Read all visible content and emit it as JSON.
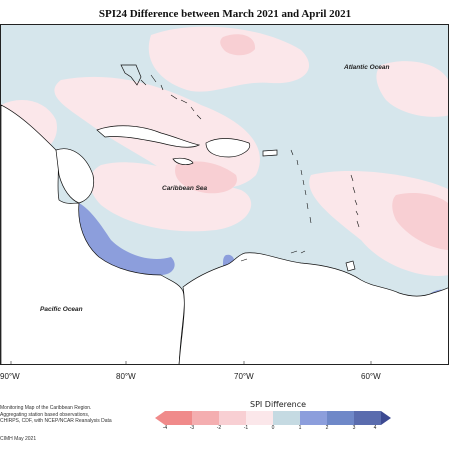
{
  "title": "SPI24 Difference between March 2021 and April 2021",
  "place_labels": {
    "atlantic": "Atlantic Ocean",
    "caribbean": "Caribbean Sea",
    "pacific": "Pacific Ocean"
  },
  "longitude_ticks": [
    "90°W",
    "80°W",
    "70°W",
    "60°W"
  ],
  "credit_lines": [
    "Monitoring Map of the Caribbean Region.",
    "Aggregating station based observations,",
    "CHIRPS, CDF, with NCEP/NCAR Reanalysis Data"
  ],
  "footer_credit": "CIMH May 2021",
  "legend": {
    "title": "SPI Difference",
    "ticks": [
      "-4",
      "-3",
      "-2",
      "-1",
      "0",
      "1",
      "2",
      "3",
      "4"
    ],
    "colors": [
      "#f08a8a",
      "#f4aeb0",
      "#f8cfd3",
      "#fbe7ea",
      "#eef3f6",
      "#c5dae2",
      "#8c9edc",
      "#6f88c8",
      "#3c4a92"
    ]
  },
  "colors": {
    "ocean_neutral": "#d6e6ec",
    "land": "#ffffff",
    "coast": "#111111"
  }
}
